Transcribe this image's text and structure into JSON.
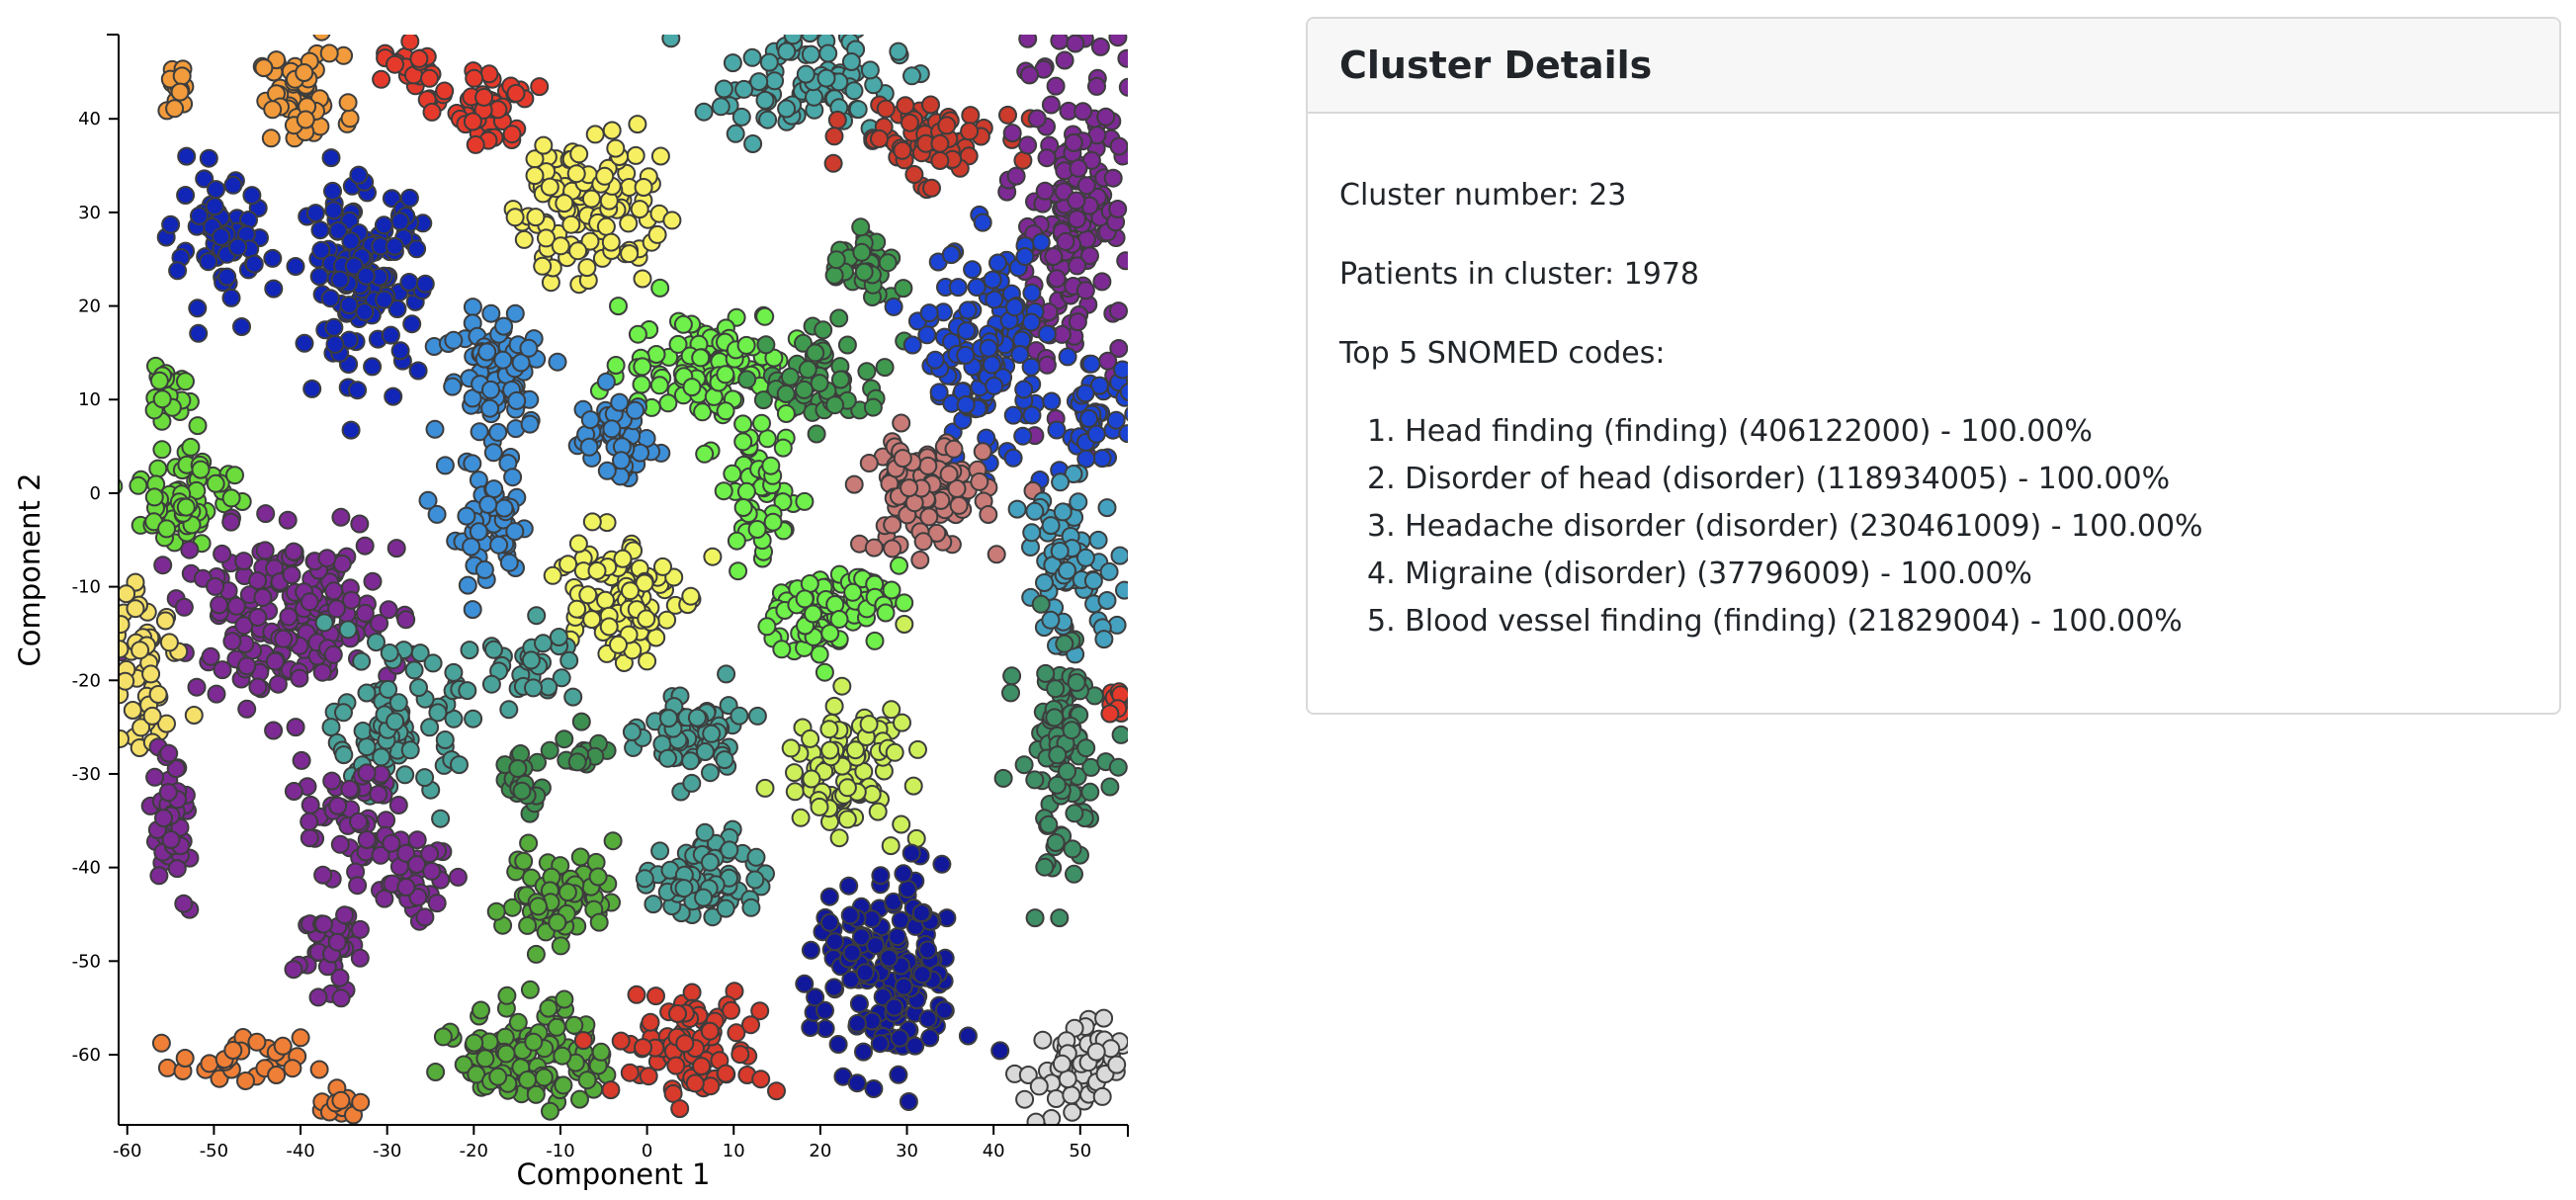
{
  "chart_data": {
    "type": "scatter",
    "xlabel": "Component 1",
    "ylabel": "Component 2",
    "xlim": [
      -61,
      55.5
    ],
    "ylim": [
      -67.5,
      49
    ],
    "xticks": [
      -60,
      -50,
      -40,
      -30,
      -20,
      -10,
      0,
      10,
      20,
      30,
      40,
      50
    ],
    "yticks": [
      -60,
      -50,
      -40,
      -30,
      -20,
      -10,
      0,
      10,
      20,
      30,
      40
    ],
    "grid": false,
    "legend": "none",
    "marker_stroke": "#3d3d3d",
    "clusters": [
      {
        "color": "#f19b3c",
        "center": [
          -54,
          43
        ],
        "spread": [
          1.6,
          2
        ],
        "n": 14
      },
      {
        "color": "#f19b3c",
        "center": [
          -40,
          42
        ],
        "spread": [
          3.5,
          3.5
        ],
        "n": 55
      },
      {
        "color": "#e53a2b",
        "center": [
          -27,
          45
        ],
        "spread": [
          2.5,
          2.2
        ],
        "n": 25
      },
      {
        "color": "#e53a2b",
        "center": [
          -18,
          41
        ],
        "spread": [
          3,
          3
        ],
        "n": 45
      },
      {
        "color": "#f7ef62",
        "center": [
          -7,
          31
        ],
        "spread": [
          6,
          6
        ],
        "n": 120
      },
      {
        "color": "#4aa8a8",
        "center": [
          18,
          44
        ],
        "spread": [
          8,
          4
        ],
        "n": 90
      },
      {
        "color": "#cc3b2b",
        "center": [
          32,
          38
        ],
        "spread": [
          6,
          3
        ],
        "n": 70
      },
      {
        "color": "#7d2a95",
        "center": [
          49,
          30
        ],
        "spread": [
          5,
          14
        ],
        "n": 170
      },
      {
        "color": "#1126b6",
        "center": [
          -49,
          26
        ],
        "spread": [
          4,
          5
        ],
        "n": 60
      },
      {
        "color": "#1126b6",
        "center": [
          -33,
          23
        ],
        "spread": [
          5,
          7
        ],
        "n": 130
      },
      {
        "color": "#3d8fd8",
        "center": [
          -17,
          13
        ],
        "spread": [
          4.5,
          5
        ],
        "n": 75
      },
      {
        "color": "#6ff04b",
        "center": [
          7,
          14
        ],
        "spread": [
          7,
          4
        ],
        "n": 110
      },
      {
        "color": "#3f9a4f",
        "center": [
          21,
          12
        ],
        "spread": [
          5,
          3.5
        ],
        "n": 60
      },
      {
        "color": "#3f9a4f",
        "center": [
          25,
          24
        ],
        "spread": [
          3,
          3
        ],
        "n": 40
      },
      {
        "color": "#1b44d4",
        "center": [
          39,
          15
        ],
        "spread": [
          5,
          8
        ],
        "n": 140
      },
      {
        "color": "#1b44d4",
        "center": [
          52,
          8
        ],
        "spread": [
          3,
          4
        ],
        "n": 45
      },
      {
        "color": "#3d8fd8",
        "center": [
          -4,
          6
        ],
        "spread": [
          3.5,
          3
        ],
        "n": 50
      },
      {
        "color": "#3d8fd8",
        "center": [
          -18,
          -4
        ],
        "spread": [
          3.5,
          6
        ],
        "n": 55
      },
      {
        "color": "#c97b78",
        "center": [
          32,
          0
        ],
        "spread": [
          5,
          4.5
        ],
        "n": 110
      },
      {
        "color": "#45a1c0",
        "center": [
          49,
          -8
        ],
        "spread": [
          4,
          6
        ],
        "n": 70
      },
      {
        "color": "#6bdc3c",
        "center": [
          -53,
          0
        ],
        "spread": [
          4,
          4
        ],
        "n": 70
      },
      {
        "color": "#6bdc3c",
        "center": [
          -55,
          11
        ],
        "spread": [
          1.5,
          3
        ],
        "n": 20
      },
      {
        "color": "#6ff04b",
        "center": [
          13,
          0
        ],
        "spread": [
          3,
          5
        ],
        "n": 55
      },
      {
        "color": "#7d2a95",
        "center": [
          -41,
          -13
        ],
        "spread": [
          9,
          6
        ],
        "n": 190
      },
      {
        "color": "#f5e06a",
        "center": [
          -58,
          -18
        ],
        "spread": [
          3,
          7
        ],
        "n": 55
      },
      {
        "color": "#f1f461",
        "center": [
          -4,
          -11
        ],
        "spread": [
          5,
          5
        ],
        "n": 120
      },
      {
        "color": "#6ff04b",
        "center": [
          19,
          -13
        ],
        "spread": [
          3.5,
          3.5
        ],
        "n": 60
      },
      {
        "color": "#6ff04b",
        "center": [
          27,
          -11
        ],
        "spread": [
          3,
          2.5
        ],
        "n": 35
      },
      {
        "color": "#4aa39a",
        "center": [
          -29,
          -25
        ],
        "spread": [
          5,
          5
        ],
        "n": 90
      },
      {
        "color": "#4aa39a",
        "center": [
          -14,
          -18
        ],
        "spread": [
          4,
          3
        ],
        "n": 30
      },
      {
        "color": "#4aa39a",
        "center": [
          5,
          -26
        ],
        "spread": [
          4,
          3.5
        ],
        "n": 70
      },
      {
        "color": "#3d8f4f",
        "center": [
          -15,
          -31
        ],
        "spread": [
          2.5,
          2
        ],
        "n": 20
      },
      {
        "color": "#3d8f4f",
        "center": [
          -7,
          -28
        ],
        "spread": [
          2,
          2
        ],
        "n": 15
      },
      {
        "color": "#cdf05a",
        "center": [
          23,
          -29
        ],
        "spread": [
          5,
          5
        ],
        "n": 90
      },
      {
        "color": "#3e8f66",
        "center": [
          48,
          -28
        ],
        "spread": [
          3.5,
          9
        ],
        "n": 100
      },
      {
        "color": "#7d2a95",
        "center": [
          -55,
          -35
        ],
        "spread": [
          2,
          6
        ],
        "n": 40
      },
      {
        "color": "#7d2a95",
        "center": [
          -34,
          -35
        ],
        "spread": [
          4,
          4
        ],
        "n": 50
      },
      {
        "color": "#7d2a95",
        "center": [
          -27,
          -41
        ],
        "spread": [
          3,
          3
        ],
        "n": 35
      },
      {
        "color": "#7d2a95",
        "center": [
          -37,
          -48
        ],
        "spread": [
          2.5,
          4
        ],
        "n": 35
      },
      {
        "color": "#4aa39a",
        "center": [
          7,
          -41
        ],
        "spread": [
          4.5,
          3.5
        ],
        "n": 70
      },
      {
        "color": "#55ac3a",
        "center": [
          -10,
          -43
        ],
        "spread": [
          4.5,
          3.5
        ],
        "n": 75
      },
      {
        "color": "#55ac3a",
        "center": [
          -13,
          -60
        ],
        "spread": [
          6,
          4
        ],
        "n": 110
      },
      {
        "color": "#d83a2b",
        "center": [
          5,
          -59
        ],
        "spread": [
          6,
          4
        ],
        "n": 95
      },
      {
        "color": "#11189a",
        "center": [
          28,
          -52
        ],
        "spread": [
          6,
          8
        ],
        "n": 160
      },
      {
        "color": "#d9d9d9",
        "center": [
          49,
          -62
        ],
        "spread": [
          4,
          4
        ],
        "n": 60
      },
      {
        "color": "#ef7f36",
        "center": [
          -47,
          -61
        ],
        "spread": [
          5,
          2
        ],
        "n": 30
      },
      {
        "color": "#ef7f36",
        "center": [
          -36,
          -65
        ],
        "spread": [
          2,
          1.5
        ],
        "n": 12
      },
      {
        "color": "#e53a2b",
        "center": [
          54,
          -23
        ],
        "spread": [
          1.2,
          1.5
        ],
        "n": 10
      }
    ]
  },
  "details": {
    "title": "Cluster Details",
    "cluster_number": "Cluster number: 23",
    "patients": "Patients in cluster: 1978",
    "top_codes_heading": "Top 5 SNOMED codes:",
    "codes": [
      "1. Head finding (finding) (406122000) - 100.00%",
      "2. Disorder of head (disorder) (118934005) - 100.00%",
      "3. Headache disorder (disorder) (230461009) - 100.00%",
      "4. Migraine (disorder) (37796009) - 100.00%",
      "5. Blood vessel finding (finding) (21829004) - 100.00%"
    ]
  }
}
